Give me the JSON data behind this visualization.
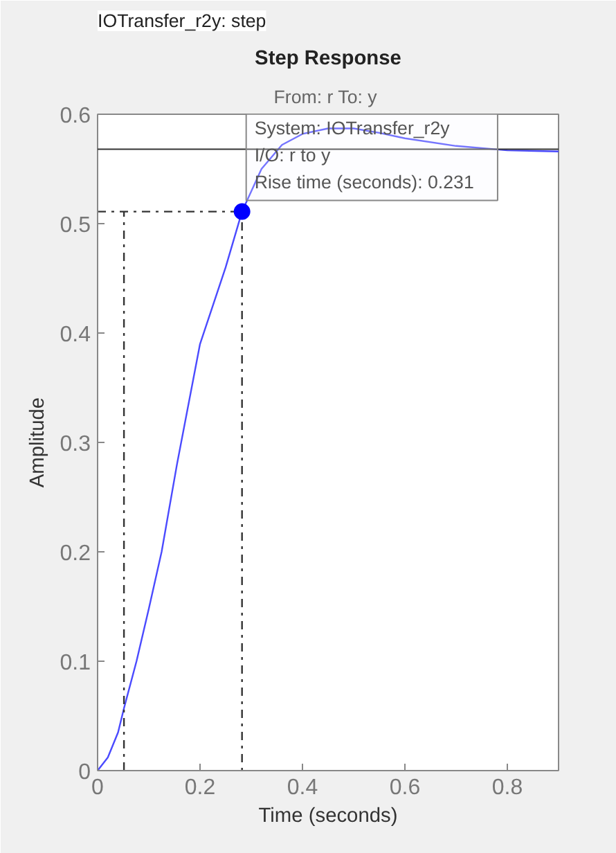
{
  "chart_data": {
    "type": "line",
    "title": "Step Response",
    "subtitle": "From: r  To: y",
    "xlabel": "Time (seconds)",
    "ylabel": "Amplitude",
    "annotations": [
      "IOTransfer_r2y: step",
      {
        "text": "System:  IOTransfer_r2y\nI/O:  r  to  y\nRise  time  (seconds):  0.231",
        "x": 0.282,
        "y": 0.511
      }
    ],
    "series": [
      {
        "color": "#4a4aff",
        "x": [
          0,
          0.02,
          0.04,
          0.0515,
          0.076,
          0.1,
          0.125,
          0.155,
          0.2,
          0.25,
          0.282,
          0.32,
          0.36,
          0.4,
          0.45,
          0.5,
          0.55,
          0.6,
          0.7,
          0.8,
          0.9
        ],
        "values": [
          0,
          0.012,
          0.035,
          0.057,
          0.1,
          0.148,
          0.2,
          0.28,
          0.39,
          0.46,
          0.511,
          0.55,
          0.572,
          0.582,
          0.587,
          0.587,
          0.583,
          0.578,
          0.571,
          0.567,
          0.566
        ]
      },
      {
        "color": "#333333",
        "line_style": "dashdot",
        "x": [
          0,
          0.282,
          0.282
        ],
        "values": [
          0.511,
          0.511,
          0
        ]
      },
      {
        "color": "#333333",
        "line_style": "dashdot",
        "x": [
          0.0515,
          0.0515
        ],
        "values": [
          0,
          0.511
        ]
      },
      {
        "type": "scatter",
        "marker": "circle",
        "color": "#0000ff",
        "x": [
          0.282
        ],
        "values": [
          0.511
        ]
      }
    ],
    "ref_lines": [
      {
        "axis": "y",
        "value": 0.568,
        "color": "#333333",
        "line_style": "solid"
      }
    ],
    "xlim": [
      0,
      0.9
    ],
    "ylim": [
      0,
      0.6
    ],
    "xticks": [
      0,
      0.2,
      0.4,
      0.6,
      0.8
    ],
    "yticks": [
      0,
      0.1,
      0.2,
      0.3,
      0.4,
      0.5,
      0.6
    ],
    "grid": false,
    "marker": "none",
    "line_style": "solid"
  }
}
